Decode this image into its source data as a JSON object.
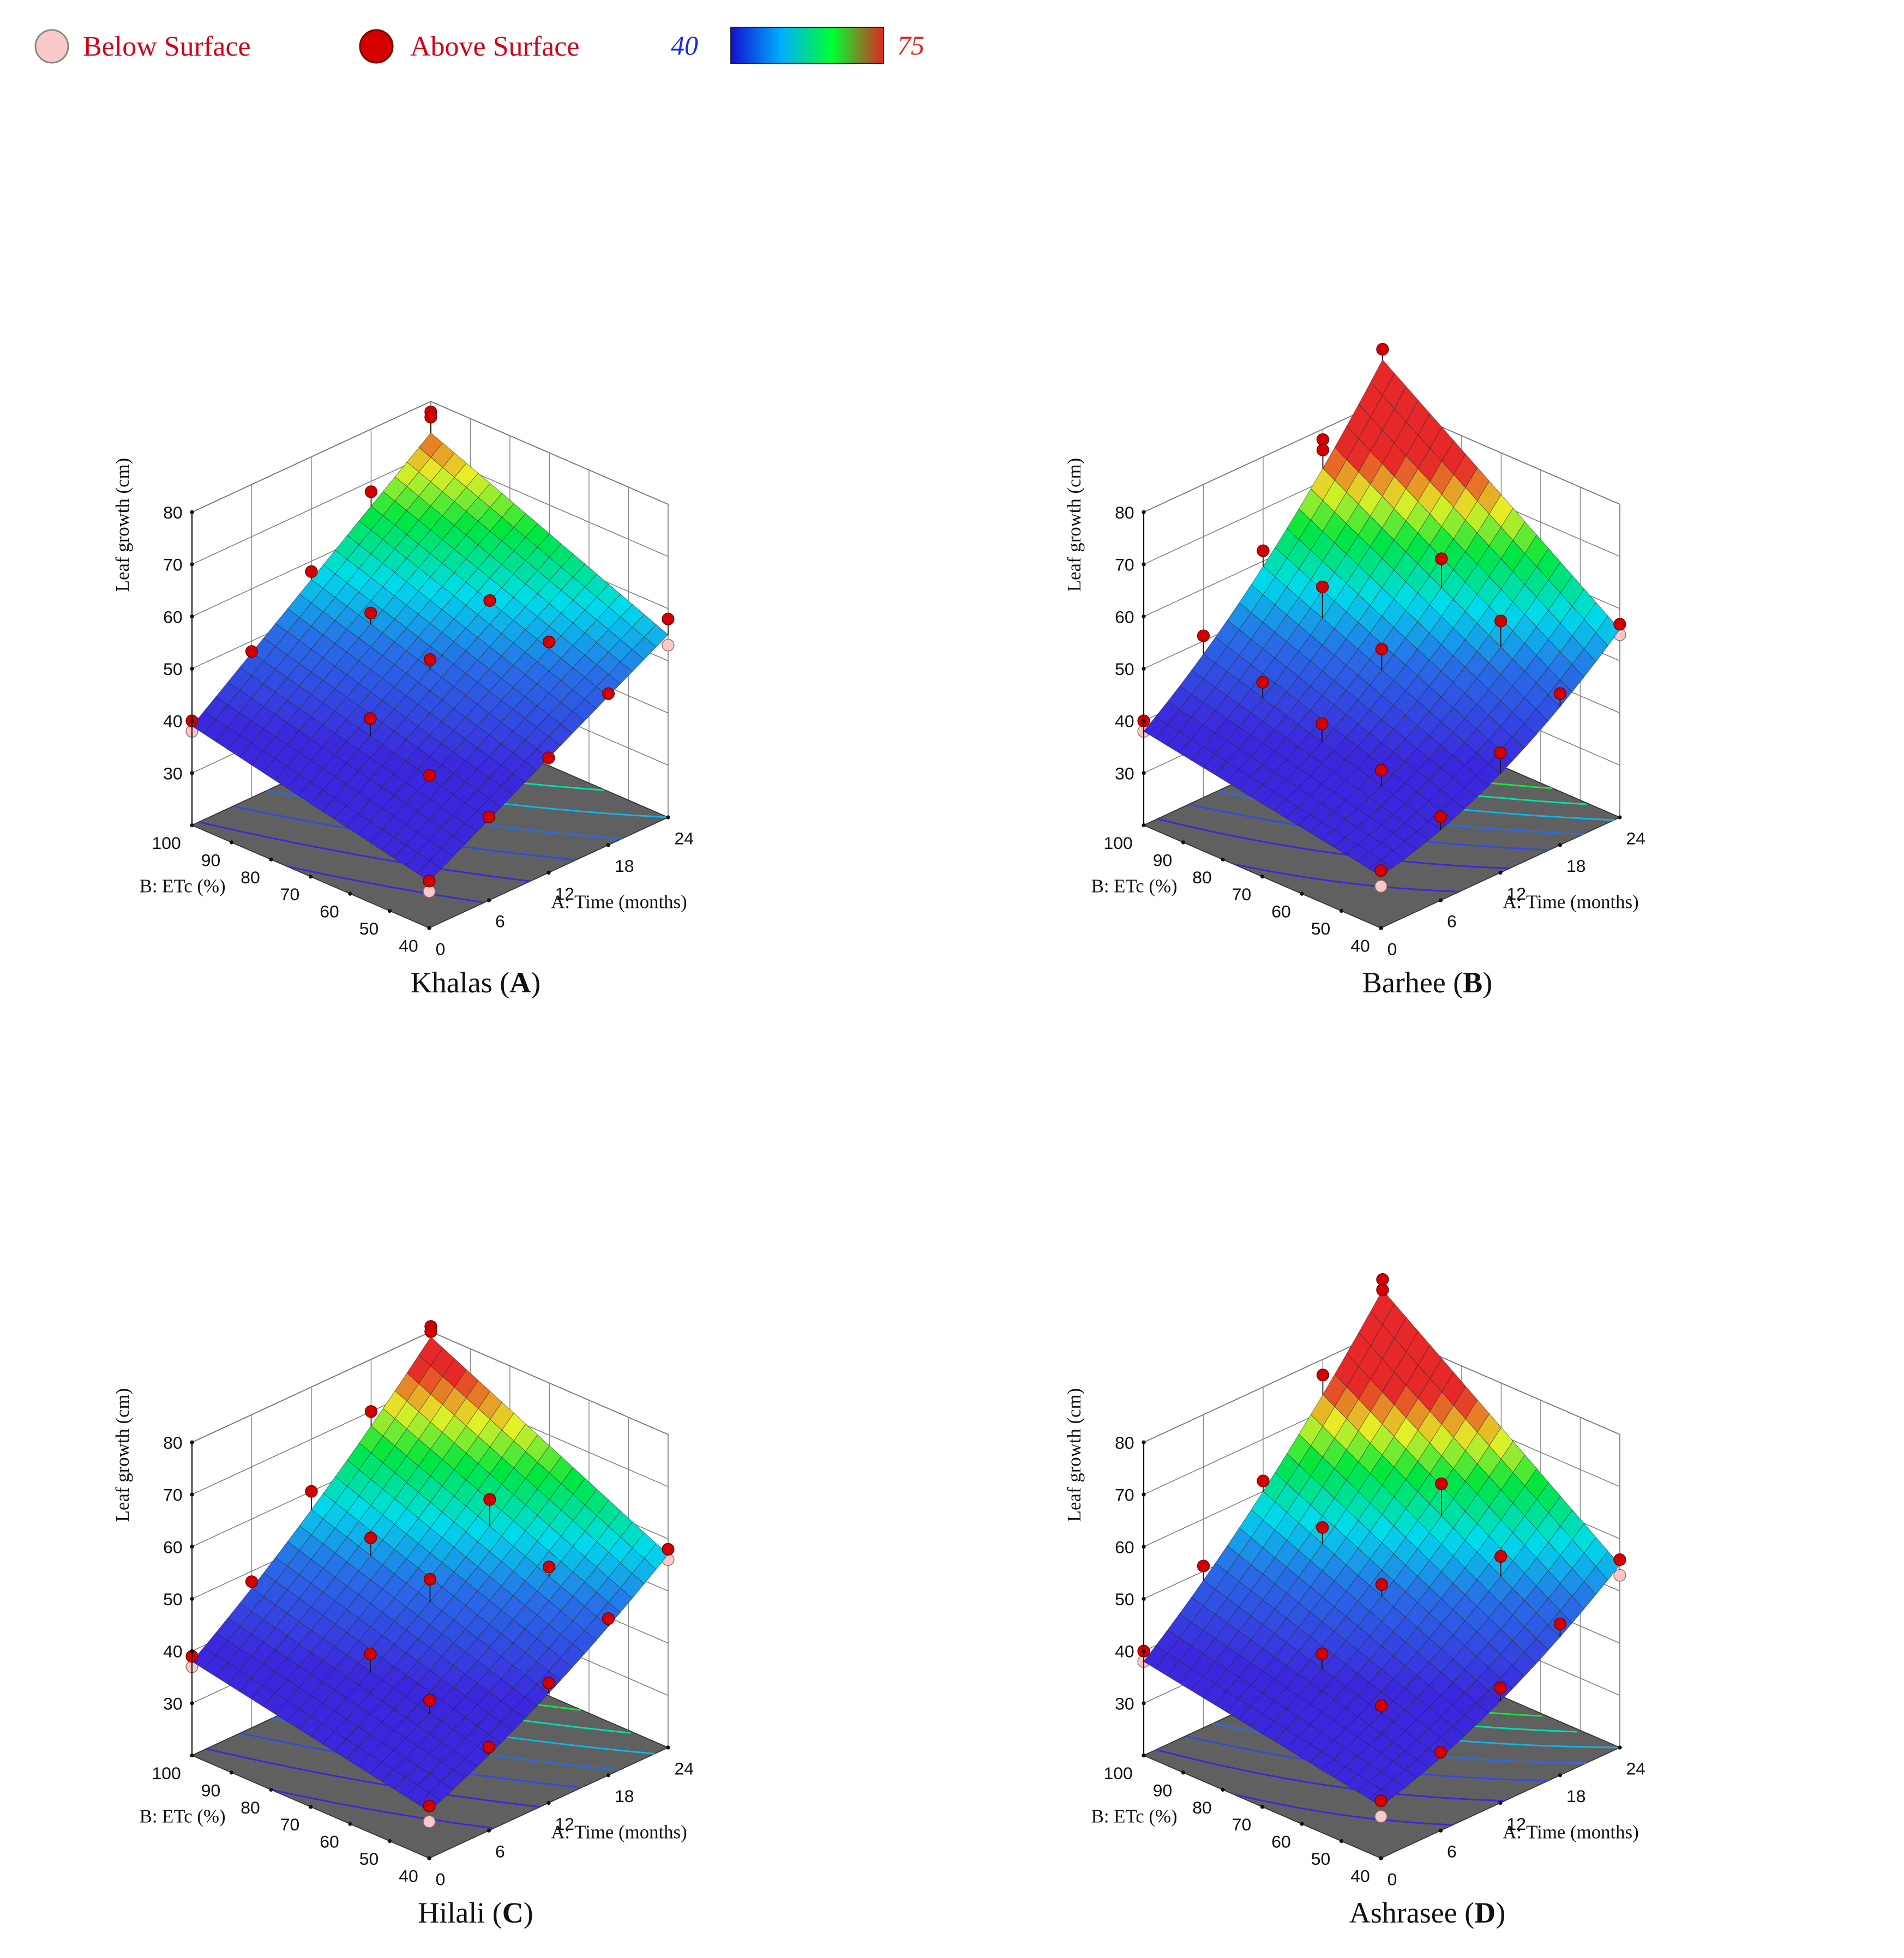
{
  "legend": {
    "below_label": "Below Surface",
    "above_label": "Above Surface",
    "below_color": "#f9c9c9",
    "above_color": "#d40000",
    "colorbar_min": "40",
    "colorbar_max": "75",
    "colorbar_min_color": "#1a2bd6",
    "colorbar_max_color": "#e0261f",
    "colorbar_stops": [
      "#1010d0",
      "#00b0ff",
      "#00ff30",
      "#e0261f"
    ]
  },
  "chart_data": [
    {
      "type": "surface",
      "caption_prefix": "Khalas (",
      "caption_letter": "A",
      "caption_suffix": ")",
      "zlabel": "Leaf growth (cm)",
      "xlabel": "A: Time (months)",
      "ylabel": "B: ETc (%)",
      "x_ticks": [
        "0",
        "6",
        "12",
        "18",
        "24"
      ],
      "y_ticks": [
        "40",
        "50",
        "60",
        "70",
        "80",
        "90",
        "100"
      ],
      "z_ticks": [
        "30",
        "40",
        "50",
        "60",
        "70",
        "80"
      ],
      "xlim": [
        0,
        24
      ],
      "ylim": [
        40,
        100
      ],
      "zlim": [
        20,
        80
      ],
      "surface_corners": {
        "t0_e40": 29,
        "t24_e40": 55,
        "t0_e100": 39,
        "t24_e100": 74
      },
      "curvature": 0,
      "points": [
        {
          "t": 0,
          "e": 40,
          "z": 29,
          "above": true
        },
        {
          "t": 0,
          "e": 40,
          "z": 27,
          "above": false
        },
        {
          "t": 0,
          "e": 100,
          "z": 40,
          "above": true
        },
        {
          "t": 0,
          "e": 100,
          "z": 38,
          "above": false
        },
        {
          "t": 24,
          "e": 40,
          "z": 58,
          "above": true
        },
        {
          "t": 24,
          "e": 40,
          "z": 53,
          "above": false
        },
        {
          "t": 24,
          "e": 100,
          "z": 78,
          "above": true
        },
        {
          "t": 24,
          "e": 100,
          "z": 77,
          "above": true
        },
        {
          "t": 12,
          "e": 70,
          "z": 51,
          "above": true
        },
        {
          "t": 6,
          "e": 70,
          "z": 45,
          "above": true
        },
        {
          "t": 18,
          "e": 70,
          "z": 57,
          "above": true
        },
        {
          "t": 12,
          "e": 40,
          "z": 42,
          "above": true
        },
        {
          "t": 12,
          "e": 100,
          "z": 58,
          "above": true
        },
        {
          "t": 6,
          "e": 40,
          "z": 36,
          "above": true
        },
        {
          "t": 18,
          "e": 40,
          "z": 49,
          "above": true
        },
        {
          "t": 6,
          "e": 100,
          "z": 48,
          "above": true
        },
        {
          "t": 18,
          "e": 100,
          "z": 68,
          "above": true
        },
        {
          "t": 12,
          "e": 85,
          "z": 55,
          "above": true
        },
        {
          "t": 6,
          "e": 55,
          "z": 39,
          "above": true
        },
        {
          "t": 18,
          "e": 55,
          "z": 54,
          "above": true
        }
      ]
    },
    {
      "type": "surface",
      "caption_prefix": "Barhee (",
      "caption_letter": "B",
      "caption_suffix": ")",
      "zlabel": "Leaf growth (cm)",
      "xlabel": "A: Time (months)",
      "ylabel": "B: ETc (%)",
      "x_ticks": [
        "0",
        "6",
        "12",
        "18",
        "24"
      ],
      "y_ticks": [
        "40",
        "50",
        "60",
        "70",
        "80",
        "90",
        "100"
      ],
      "z_ticks": [
        "30",
        "40",
        "50",
        "60",
        "70",
        "80"
      ],
      "xlim": [
        0,
        24
      ],
      "ylim": [
        40,
        100
      ],
      "zlim": [
        20,
        80
      ],
      "surface_corners": {
        "t0_e40": 30,
        "t24_e40": 56,
        "t0_e100": 38,
        "t24_e100": 88
      },
      "curvature": 4,
      "points": [
        {
          "t": 0,
          "e": 40,
          "z": 31,
          "above": true
        },
        {
          "t": 0,
          "e": 40,
          "z": 28,
          "above": false
        },
        {
          "t": 0,
          "e": 100,
          "z": 40,
          "above": true
        },
        {
          "t": 0,
          "e": 100,
          "z": 38,
          "above": false
        },
        {
          "t": 24,
          "e": 40,
          "z": 57,
          "above": true
        },
        {
          "t": 24,
          "e": 40,
          "z": 55,
          "above": false
        },
        {
          "t": 24,
          "e": 100,
          "z": 90,
          "above": true
        },
        {
          "t": 12,
          "e": 70,
          "z": 53,
          "above": true
        },
        {
          "t": 6,
          "e": 70,
          "z": 44,
          "above": true
        },
        {
          "t": 18,
          "e": 70,
          "z": 65,
          "above": true
        },
        {
          "t": 12,
          "e": 40,
          "z": 43,
          "above": true
        },
        {
          "t": 12,
          "e": 100,
          "z": 62,
          "above": true
        },
        {
          "t": 6,
          "e": 40,
          "z": 36,
          "above": true
        },
        {
          "t": 18,
          "e": 40,
          "z": 49,
          "above": true
        },
        {
          "t": 6,
          "e": 100,
          "z": 51,
          "above": true
        },
        {
          "t": 18,
          "e": 100,
          "z": 78,
          "above": true
        },
        {
          "t": 18,
          "e": 100,
          "z": 76,
          "above": true
        },
        {
          "t": 12,
          "e": 85,
          "z": 60,
          "above": true
        },
        {
          "t": 6,
          "e": 55,
          "z": 40,
          "above": true
        },
        {
          "t": 18,
          "e": 55,
          "z": 58,
          "above": true
        },
        {
          "t": 6,
          "e": 85,
          "z": 47,
          "above": true
        }
      ]
    },
    {
      "type": "surface",
      "caption_prefix": "Hilali (",
      "caption_letter": "C",
      "caption_suffix": ")",
      "zlabel": "Leaf growth (cm)",
      "xlabel": "A: Time (months)",
      "ylabel": "B: ETc (%)",
      "x_ticks": [
        "0",
        "6",
        "12",
        "18",
        "24"
      ],
      "y_ticks": [
        "40",
        "50",
        "60",
        "70",
        "80",
        "90",
        "100"
      ],
      "z_ticks": [
        "30",
        "40",
        "50",
        "60",
        "70",
        "80"
      ],
      "xlim": [
        0,
        24
      ],
      "ylim": [
        40,
        100
      ],
      "zlim": [
        20,
        80
      ],
      "surface_corners": {
        "t0_e40": 29,
        "t24_e40": 57,
        "t0_e100": 38,
        "t24_e100": 79
      },
      "curvature": 2,
      "points": [
        {
          "t": 0,
          "e": 40,
          "z": 30,
          "above": true
        },
        {
          "t": 0,
          "e": 40,
          "z": 27,
          "above": false
        },
        {
          "t": 0,
          "e": 100,
          "z": 39,
          "above": true
        },
        {
          "t": 0,
          "e": 100,
          "z": 37,
          "above": false
        },
        {
          "t": 24,
          "e": 40,
          "z": 58,
          "above": true
        },
        {
          "t": 24,
          "e": 40,
          "z": 56,
          "above": false
        },
        {
          "t": 24,
          "e": 100,
          "z": 81,
          "above": true
        },
        {
          "t": 24,
          "e": 100,
          "z": 80,
          "above": true
        },
        {
          "t": 12,
          "e": 70,
          "z": 53,
          "above": true
        },
        {
          "t": 6,
          "e": 70,
          "z": 44,
          "above": true
        },
        {
          "t": 18,
          "e": 70,
          "z": 63,
          "above": true
        },
        {
          "t": 12,
          "e": 40,
          "z": 43,
          "above": true
        },
        {
          "t": 12,
          "e": 100,
          "z": 60,
          "above": true
        },
        {
          "t": 6,
          "e": 40,
          "z": 36,
          "above": true
        },
        {
          "t": 18,
          "e": 40,
          "z": 50,
          "above": true
        },
        {
          "t": 6,
          "e": 100,
          "z": 48,
          "above": true
        },
        {
          "t": 18,
          "e": 100,
          "z": 70,
          "above": true
        },
        {
          "t": 12,
          "e": 85,
          "z": 56,
          "above": true
        },
        {
          "t": 6,
          "e": 55,
          "z": 40,
          "above": true
        },
        {
          "t": 18,
          "e": 55,
          "z": 55,
          "above": true
        }
      ]
    },
    {
      "type": "surface",
      "caption_prefix": "Ashrasee (",
      "caption_letter": "D",
      "caption_suffix": ")",
      "zlabel": "Leaf growth (cm)",
      "xlabel": "A: Time (months)",
      "ylabel": "B: ETc (%)",
      "x_ticks": [
        "0",
        "6",
        "12",
        "18",
        "24"
      ],
      "y_ticks": [
        "40",
        "50",
        "60",
        "70",
        "80",
        "90",
        "100"
      ],
      "z_ticks": [
        "30",
        "40",
        "50",
        "60",
        "70",
        "80"
      ],
      "xlim": [
        0,
        24
      ],
      "ylim": [
        40,
        100
      ],
      "zlim": [
        20,
        80
      ],
      "surface_corners": {
        "t0_e40": 30,
        "t24_e40": 55,
        "t0_e100": 38,
        "t24_e100": 88
      },
      "curvature": 3,
      "points": [
        {
          "t": 0,
          "e": 40,
          "z": 31,
          "above": true
        },
        {
          "t": 0,
          "e": 40,
          "z": 28,
          "above": false
        },
        {
          "t": 0,
          "e": 100,
          "z": 40,
          "above": true
        },
        {
          "t": 0,
          "e": 100,
          "z": 38,
          "above": false
        },
        {
          "t": 24,
          "e": 40,
          "z": 56,
          "above": true
        },
        {
          "t": 24,
          "e": 40,
          "z": 53,
          "above": false
        },
        {
          "t": 24,
          "e": 100,
          "z": 90,
          "above": true
        },
        {
          "t": 24,
          "e": 100,
          "z": 88,
          "above": true
        },
        {
          "t": 12,
          "e": 70,
          "z": 52,
          "above": true
        },
        {
          "t": 6,
          "e": 70,
          "z": 44,
          "above": true
        },
        {
          "t": 18,
          "e": 70,
          "z": 66,
          "above": true
        },
        {
          "t": 12,
          "e": 40,
          "z": 42,
          "above": true
        },
        {
          "t": 12,
          "e": 100,
          "z": 62,
          "above": true
        },
        {
          "t": 6,
          "e": 40,
          "z": 35,
          "above": true
        },
        {
          "t": 18,
          "e": 40,
          "z": 49,
          "above": true
        },
        {
          "t": 6,
          "e": 100,
          "z": 51,
          "above": true
        },
        {
          "t": 18,
          "e": 100,
          "z": 77,
          "above": true
        },
        {
          "t": 12,
          "e": 85,
          "z": 58,
          "above": true
        },
        {
          "t": 6,
          "e": 55,
          "z": 39,
          "above": true
        },
        {
          "t": 18,
          "e": 55,
          "z": 57,
          "above": true
        }
      ]
    }
  ]
}
